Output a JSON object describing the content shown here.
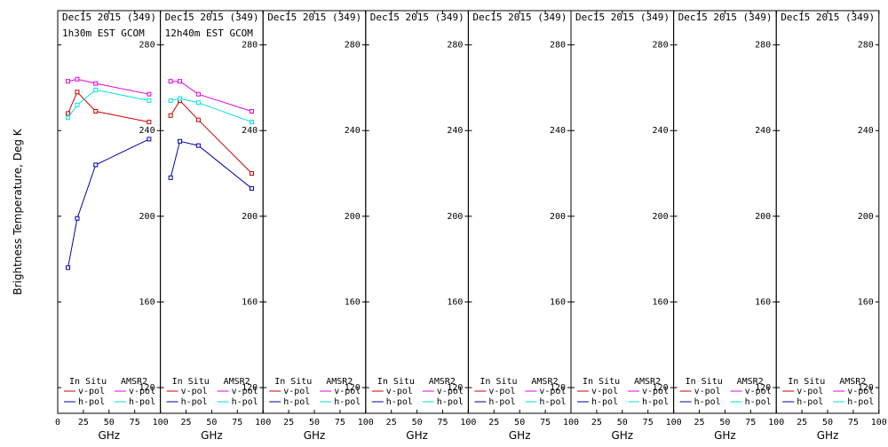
{
  "chart_data": {
    "type": "line",
    "ylabel": "Brightness Temperature, Deg K",
    "xlabel": "GHz",
    "xlim": [
      0,
      100
    ],
    "ylim": [
      108,
      296
    ],
    "yticks": [
      120,
      160,
      200,
      240,
      280
    ],
    "ytick_labels": [
      "120",
      "160",
      "200",
      "240",
      "280"
    ],
    "xticks": [
      0,
      25,
      50,
      75,
      100
    ],
    "xtick_labels_first": [
      "0",
      "25",
      "50",
      "75",
      "100"
    ],
    "xtick_labels_rest": [
      "25",
      "50",
      "75",
      "100"
    ],
    "legend": {
      "in_situ_label": "In Situ",
      "amsr2_label": "AMSR2",
      "vpol_label": "v-pol",
      "hpol_label": "h-pol"
    },
    "colors": {
      "insitu_v": "#cc0000",
      "insitu_h": "#0000aa",
      "amsr2_v": "#e000e0",
      "amsr2_h": "#00e0e0",
      "axes": "#000000"
    },
    "panels": [
      {
        "title": "Dec15 2015 (349)",
        "subtitle": "1h30m EST GCOM",
        "series": [
          {
            "name": "In Situ v-pol",
            "x": [
              10,
              19,
              37,
              89
            ],
            "y": [
              248,
              258,
              249,
              244
            ]
          },
          {
            "name": "In Situ h-pol",
            "x": [
              10,
              19,
              37,
              89
            ],
            "y": [
              176,
              199,
              224,
              236
            ]
          },
          {
            "name": "AMSR2 v-pol",
            "x": [
              10,
              19,
              37,
              89
            ],
            "y": [
              263,
              264,
              262,
              257
            ]
          },
          {
            "name": "AMSR2 h-pol",
            "x": [
              10,
              19,
              37,
              89
            ],
            "y": [
              246,
              252,
              259,
              254
            ]
          }
        ]
      },
      {
        "title": "Dec15 2015 (349)",
        "subtitle": "12h40m EST GCOM",
        "series": [
          {
            "name": "In Situ v-pol",
            "x": [
              10,
              19,
              37,
              89
            ],
            "y": [
              247,
              254,
              245,
              220
            ]
          },
          {
            "name": "In Situ h-pol",
            "x": [
              10,
              19,
              37,
              89
            ],
            "y": [
              218,
              235,
              233,
              213
            ]
          },
          {
            "name": "AMSR2 v-pol",
            "x": [
              10,
              19,
              37,
              89
            ],
            "y": [
              263,
              263,
              257,
              249
            ]
          },
          {
            "name": "AMSR2 h-pol",
            "x": [
              10,
              19,
              37,
              89
            ],
            "y": [
              254,
              255,
              253,
              244
            ]
          }
        ]
      },
      {
        "title": "Dec15 2015 (349)",
        "subtitle": "",
        "series": []
      },
      {
        "title": "Dec15 2015 (349)",
        "subtitle": "",
        "series": []
      },
      {
        "title": "Dec15 2015 (349)",
        "subtitle": "",
        "series": []
      },
      {
        "title": "Dec15 2015 (349)",
        "subtitle": "",
        "series": []
      },
      {
        "title": "Dec15 2015 (349)",
        "subtitle": "",
        "series": []
      },
      {
        "title": "Dec15 2015 (349)",
        "subtitle": "",
        "series": []
      }
    ]
  }
}
